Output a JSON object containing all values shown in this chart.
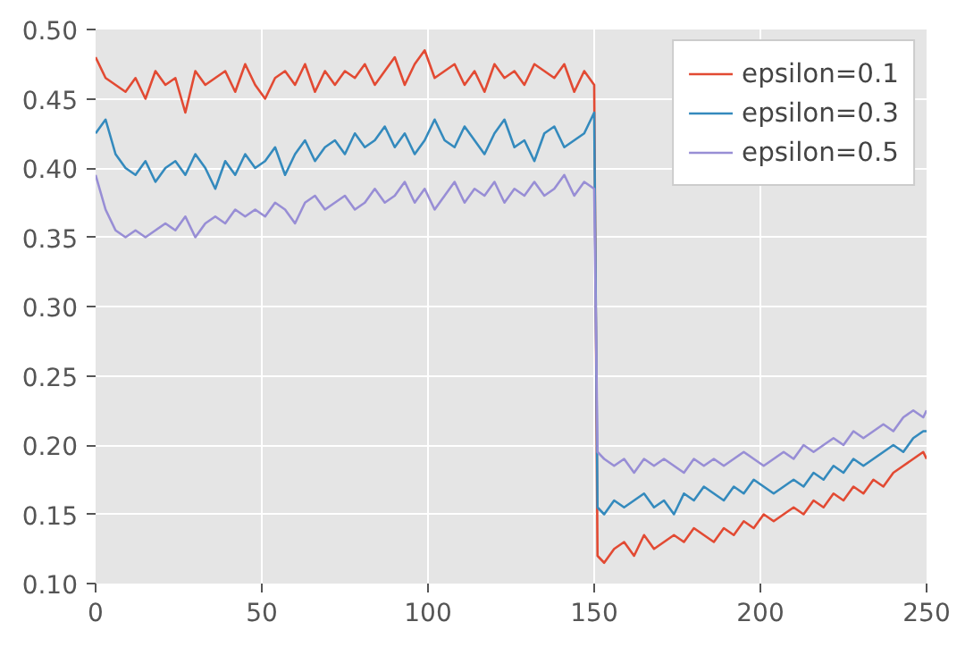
{
  "chart_data": {
    "type": "line",
    "x": [
      0,
      3,
      6,
      9,
      12,
      15,
      18,
      21,
      24,
      27,
      30,
      33,
      36,
      39,
      42,
      45,
      48,
      51,
      54,
      57,
      60,
      63,
      66,
      69,
      72,
      75,
      78,
      81,
      84,
      87,
      90,
      93,
      96,
      99,
      102,
      105,
      108,
      111,
      114,
      117,
      120,
      123,
      126,
      129,
      132,
      135,
      138,
      141,
      144,
      147,
      150,
      151,
      153,
      156,
      159,
      162,
      165,
      168,
      171,
      174,
      177,
      180,
      183,
      186,
      189,
      192,
      195,
      198,
      201,
      204,
      207,
      210,
      213,
      216,
      219,
      222,
      225,
      228,
      231,
      234,
      237,
      240,
      243,
      246,
      249,
      250
    ],
    "series": [
      {
        "name": "epsilon=0.1",
        "color": "#e24a33",
        "values": [
          0.48,
          0.465,
          0.46,
          0.455,
          0.465,
          0.45,
          0.47,
          0.46,
          0.465,
          0.44,
          0.47,
          0.46,
          0.465,
          0.47,
          0.455,
          0.475,
          0.46,
          0.45,
          0.465,
          0.47,
          0.46,
          0.475,
          0.455,
          0.47,
          0.46,
          0.47,
          0.465,
          0.475,
          0.46,
          0.47,
          0.48,
          0.46,
          0.475,
          0.485,
          0.465,
          0.47,
          0.475,
          0.46,
          0.47,
          0.455,
          0.475,
          0.465,
          0.47,
          0.46,
          0.475,
          0.47,
          0.465,
          0.475,
          0.455,
          0.47,
          0.46,
          0.12,
          0.115,
          0.125,
          0.13,
          0.12,
          0.135,
          0.125,
          0.13,
          0.135,
          0.13,
          0.14,
          0.135,
          0.13,
          0.14,
          0.135,
          0.145,
          0.14,
          0.15,
          0.145,
          0.15,
          0.155,
          0.15,
          0.16,
          0.155,
          0.165,
          0.16,
          0.17,
          0.165,
          0.175,
          0.17,
          0.18,
          0.185,
          0.19,
          0.195,
          0.19
        ]
      },
      {
        "name": "epsilon=0.3",
        "color": "#348abd",
        "values": [
          0.425,
          0.435,
          0.41,
          0.4,
          0.395,
          0.405,
          0.39,
          0.4,
          0.405,
          0.395,
          0.41,
          0.4,
          0.385,
          0.405,
          0.395,
          0.41,
          0.4,
          0.405,
          0.415,
          0.395,
          0.41,
          0.42,
          0.405,
          0.415,
          0.42,
          0.41,
          0.425,
          0.415,
          0.42,
          0.43,
          0.415,
          0.425,
          0.41,
          0.42,
          0.435,
          0.42,
          0.415,
          0.43,
          0.42,
          0.41,
          0.425,
          0.435,
          0.415,
          0.42,
          0.405,
          0.425,
          0.43,
          0.415,
          0.42,
          0.425,
          0.44,
          0.155,
          0.15,
          0.16,
          0.155,
          0.16,
          0.165,
          0.155,
          0.16,
          0.15,
          0.165,
          0.16,
          0.17,
          0.165,
          0.16,
          0.17,
          0.165,
          0.175,
          0.17,
          0.165,
          0.17,
          0.175,
          0.17,
          0.18,
          0.175,
          0.185,
          0.18,
          0.19,
          0.185,
          0.19,
          0.195,
          0.2,
          0.195,
          0.205,
          0.21,
          0.21
        ]
      },
      {
        "name": "epsilon=0.5",
        "color": "#988ed5",
        "values": [
          0.395,
          0.37,
          0.355,
          0.35,
          0.355,
          0.35,
          0.355,
          0.36,
          0.355,
          0.365,
          0.35,
          0.36,
          0.365,
          0.36,
          0.37,
          0.365,
          0.37,
          0.365,
          0.375,
          0.37,
          0.36,
          0.375,
          0.38,
          0.37,
          0.375,
          0.38,
          0.37,
          0.375,
          0.385,
          0.375,
          0.38,
          0.39,
          0.375,
          0.385,
          0.37,
          0.38,
          0.39,
          0.375,
          0.385,
          0.38,
          0.39,
          0.375,
          0.385,
          0.38,
          0.39,
          0.38,
          0.385,
          0.395,
          0.38,
          0.39,
          0.385,
          0.195,
          0.19,
          0.185,
          0.19,
          0.18,
          0.19,
          0.185,
          0.19,
          0.185,
          0.18,
          0.19,
          0.185,
          0.19,
          0.185,
          0.19,
          0.195,
          0.19,
          0.185,
          0.19,
          0.195,
          0.19,
          0.2,
          0.195,
          0.2,
          0.205,
          0.2,
          0.21,
          0.205,
          0.21,
          0.215,
          0.21,
          0.22,
          0.225,
          0.22,
          0.225
        ]
      }
    ],
    "xlim": [
      0,
      250
    ],
    "xticks": [
      0,
      50,
      100,
      150,
      200,
      250
    ],
    "ylim": [
      0.1,
      0.5
    ],
    "yticks": [
      {
        "value": 0.1,
        "label": "0.10"
      },
      {
        "value": 0.15,
        "label": "0.15"
      },
      {
        "value": 0.2,
        "label": "0.20"
      },
      {
        "value": 0.25,
        "label": "0.25"
      },
      {
        "value": 0.3,
        "label": "0.30"
      },
      {
        "value": 0.35,
        "label": "0.35"
      },
      {
        "value": 0.4,
        "label": "0.40"
      },
      {
        "value": 0.45,
        "label": "0.45"
      },
      {
        "value": 0.5,
        "label": "0.50"
      }
    ],
    "grid": true,
    "legend": "top right",
    "line_style": "solid"
  }
}
